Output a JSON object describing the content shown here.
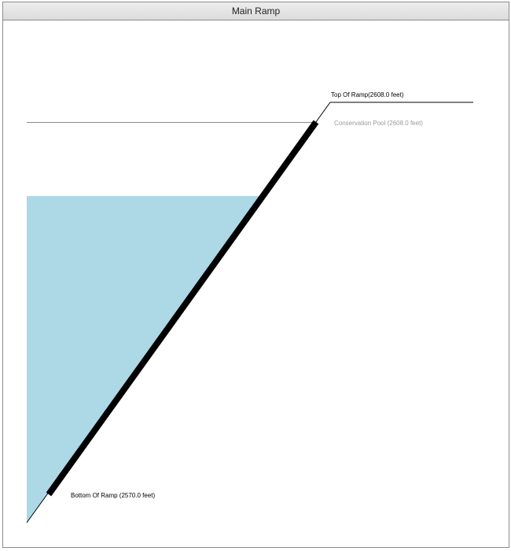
{
  "panel": {
    "title": "Main Ramp"
  },
  "diagram": {
    "top_of_ramp": {
      "label": "Top Of Ramp(2608.0 feet)",
      "elevation_ft": 2608.0
    },
    "conservation_pool": {
      "label": "Conservation Pool (2608.0 feet)",
      "elevation_ft": 2608.0
    },
    "bottom_of_ramp": {
      "label": "Bottom Of Ramp (2570.0 feet)",
      "elevation_ft": 2570.0
    },
    "colors": {
      "water": "#add8e6",
      "ramp": "#000000",
      "pool_line": "#888888",
      "pool_label": "#9a9a9a",
      "ground_line": "#000000"
    }
  }
}
